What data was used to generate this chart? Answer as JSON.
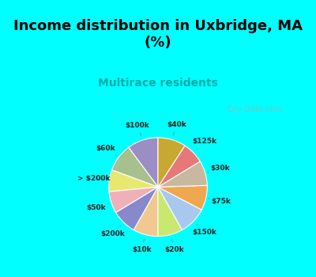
{
  "title": "Income distribution in Uxbridge, MA\n(%)",
  "subtitle": "Multirace residents",
  "title_color": "#000000",
  "subtitle_color": "#00aaaa",
  "background_top": "#00ffff",
  "background_chart": "#e8f5e8",
  "watermark": "City-Data.com",
  "labels": [
    "$100k",
    "$60k",
    "> $200k",
    "$50k",
    "$200k",
    "$10k",
    "$20k",
    "$150k",
    "$75k",
    "$30k",
    "$125k",
    "$40k"
  ],
  "values": [
    10,
    9,
    7,
    7,
    8,
    8,
    8,
    9,
    8,
    8,
    7,
    9
  ],
  "colors": [
    "#9b8ec4",
    "#a8bf8e",
    "#e8e870",
    "#f0b0b8",
    "#8888cc",
    "#f0c890",
    "#c8e870",
    "#a8c8f0",
    "#f0a850",
    "#c8b8a0",
    "#e87878",
    "#c8a830"
  ]
}
